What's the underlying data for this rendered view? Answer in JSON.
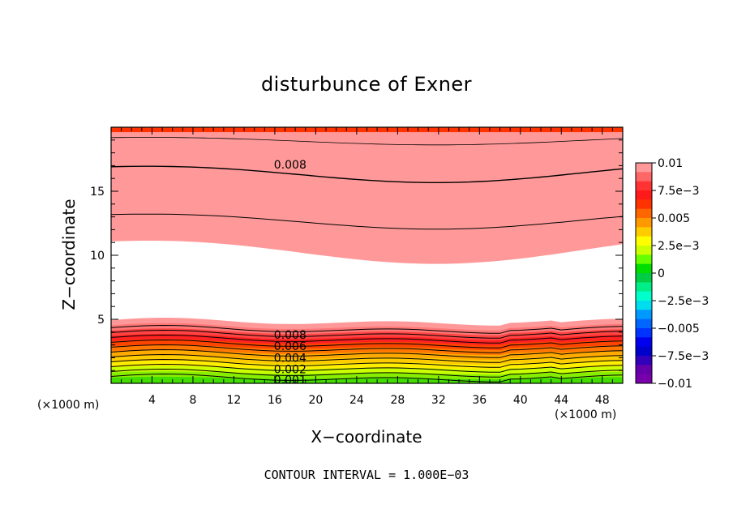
{
  "chart_data": {
    "type": "heatmap",
    "title": "disturbunce of Exner",
    "xlabel": "X−coordinate",
    "ylabel": "Z−coordinate",
    "x_unit_left": "(×1000 m)",
    "x_unit_right": "(×1000 m)",
    "xlim": [
      0,
      50
    ],
    "ylim": [
      0,
      20
    ],
    "x_ticks": [
      4,
      8,
      12,
      16,
      20,
      24,
      28,
      32,
      36,
      40,
      44,
      48
    ],
    "y_ticks": [
      5,
      10,
      15
    ],
    "footer": "CONTOUR INTERVAL = 1.000E−03",
    "colorbar": {
      "labels": [
        "0.01",
        "7.5e−3",
        "0.005",
        "2.5e−3",
        "0",
        "−2.5e−3",
        "−0.005",
        "−7.5e−3",
        "−0.01"
      ],
      "colors_top_to_bottom": [
        "#ff9999",
        "#ff6666",
        "#ff3333",
        "#ff1a1a",
        "#ff3300",
        "#ff6600",
        "#ff9900",
        "#ffcc00",
        "#ffff00",
        "#ccff00",
        "#66ff00",
        "#00dd00",
        "#00cc44",
        "#00ee88",
        "#00ffcc",
        "#00ddee",
        "#0099ff",
        "#0066ff",
        "#0033ff",
        "#0000ee",
        "#0000cc",
        "#3300bb",
        "#6600aa",
        "#7700aa"
      ]
    },
    "upper_bands": [
      {
        "z": 19.0,
        "color": "#ff1a1a"
      },
      {
        "z": 16.5,
        "color": "#ff3333"
      },
      {
        "z": 14.5,
        "color": "#ff4d4d"
      },
      {
        "z": 12.8,
        "color": "#ff6666"
      },
      {
        "z": 11.5,
        "color": "#ff8080"
      },
      {
        "z": 10.5,
        "color": "#ff9999"
      }
    ],
    "lower_bands": [
      {
        "z": 4.8,
        "color": "#ff9999"
      },
      {
        "z": 4.4,
        "color": "#ff7777"
      },
      {
        "z": 4.0,
        "color": "#ff4444"
      },
      {
        "z": 3.6,
        "color": "#ff2222"
      },
      {
        "z": 3.2,
        "color": "#ff4400"
      },
      {
        "z": 2.8,
        "color": "#ff7700"
      },
      {
        "z": 2.4,
        "color": "#ffaa00"
      },
      {
        "z": 2.0,
        "color": "#ffcc00"
      },
      {
        "z": 1.6,
        "color": "#ffee00"
      },
      {
        "z": 1.2,
        "color": "#ccff00"
      },
      {
        "z": 0.8,
        "color": "#88ee00"
      },
      {
        "z": 0.4,
        "color": "#44dd00"
      }
    ],
    "top_strip_color": "#ff3300",
    "contour_labels": [
      {
        "text": "0.008",
        "x": 17.5,
        "z": 17.1
      },
      {
        "text": "0.008",
        "x": 17.5,
        "z": 3.8
      },
      {
        "text": "0.006",
        "x": 17.5,
        "z": 2.9
      },
      {
        "text": "0.004",
        "x": 17.5,
        "z": 2.0
      },
      {
        "text": "0.002",
        "x": 17.5,
        "z": 1.1
      },
      {
        "text": "0.001",
        "x": 17.5,
        "z": 0.3
      }
    ]
  }
}
